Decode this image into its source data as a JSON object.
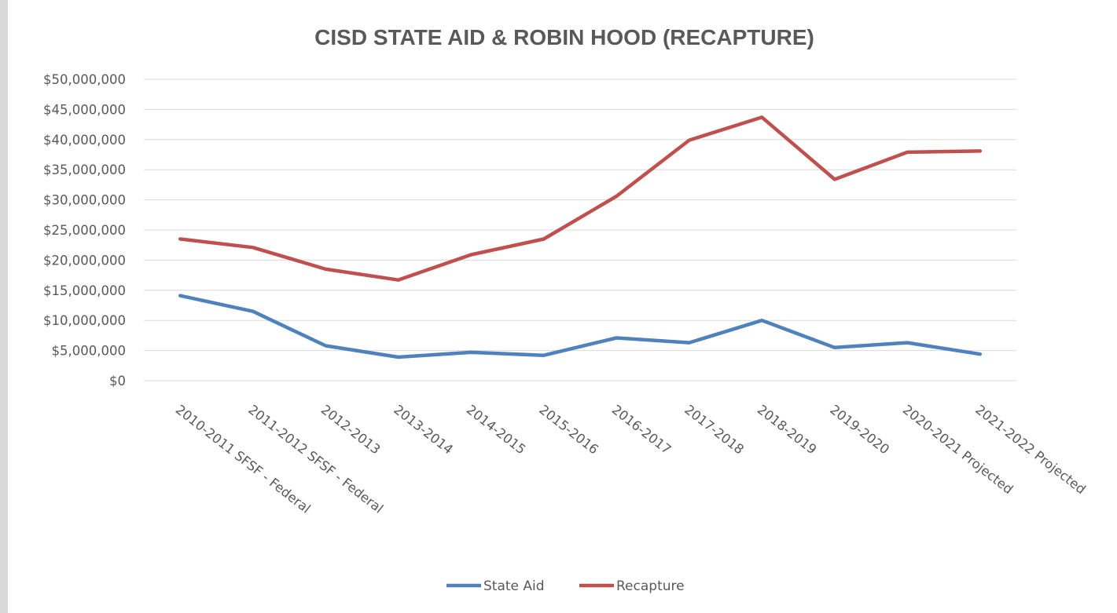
{
  "chart_data": {
    "type": "line",
    "title": "CISD STATE AID & ROBIN HOOD (RECAPTURE)",
    "xlabel": "",
    "ylabel": "",
    "categories": [
      "2010-2011 SFSF - Federal",
      "2011-2012 SFSF - Federal",
      "2012-2013",
      "2013-2014",
      "2014-2015",
      "2015-2016",
      "2016-2017",
      "2017-2018",
      "2018-2019",
      "2019-2020",
      "2020-2021 Projected",
      "2021-2022 Projected"
    ],
    "y_ticks": [
      "$0",
      "$5,000,000",
      "$10,000,000",
      "$15,000,000",
      "$20,000,000",
      "$25,000,000",
      "$30,000,000",
      "$35,000,000",
      "$40,000,000",
      "$45,000,000",
      "$50,000,000"
    ],
    "ylim": [
      0,
      50000000
    ],
    "grid": true,
    "legend_position": "bottom",
    "series": [
      {
        "name": "State Aid",
        "color": "#4f81bd",
        "values": [
          14100000,
          11500000,
          5800000,
          3900000,
          4700000,
          4200000,
          7100000,
          6300000,
          10000000,
          5500000,
          6300000,
          4400000
        ]
      },
      {
        "name": "Recapture",
        "color": "#c0504d",
        "values": [
          23500000,
          22100000,
          18500000,
          16700000,
          20900000,
          23500000,
          30600000,
          39900000,
          43700000,
          33400000,
          37900000,
          38100000
        ]
      }
    ]
  }
}
